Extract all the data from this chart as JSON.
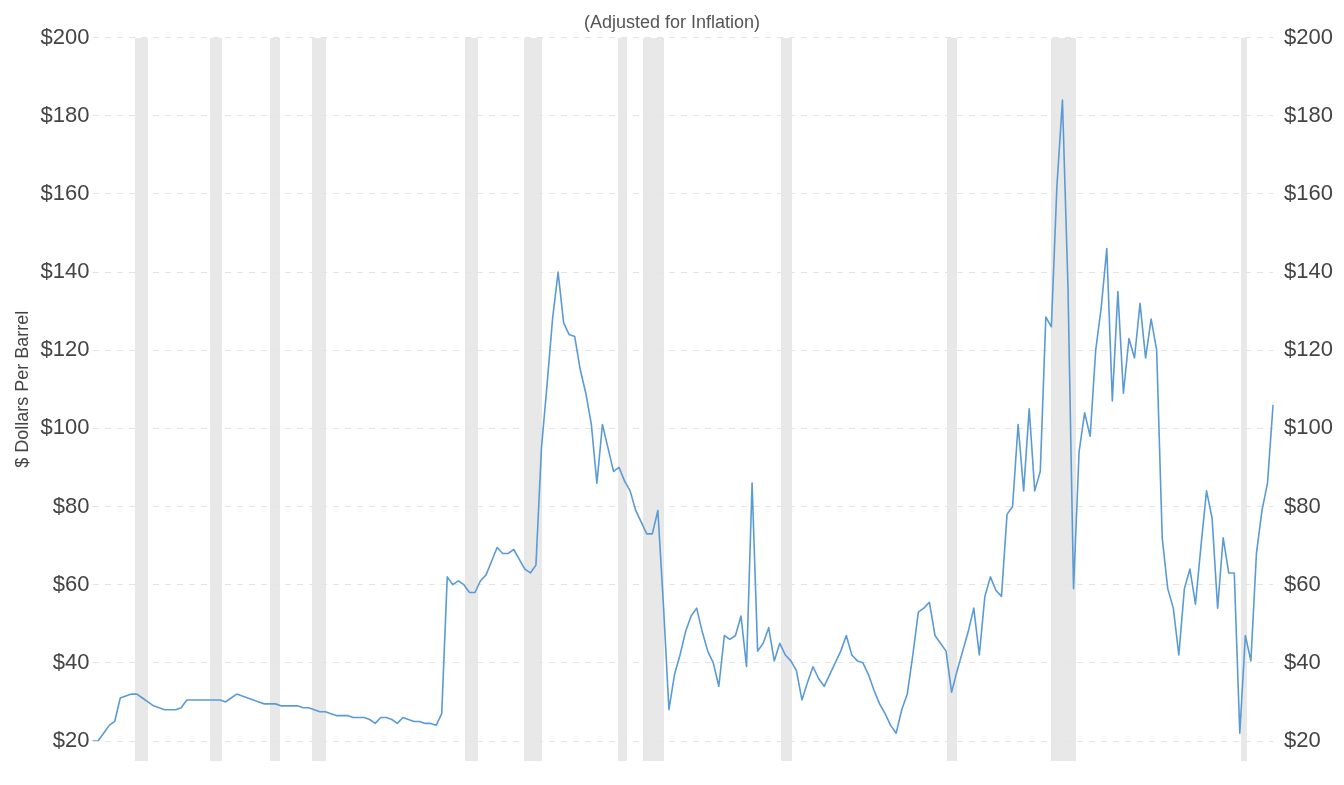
{
  "chart_data": {
    "type": "line",
    "subtitle": "(Adjusted for Inflation)",
    "ylabel": "$ Dollars Per Barrel",
    "categories": [
      null,
      null,
      null,
      null,
      null,
      null,
      null,
      null,
      null,
      null,
      null,
      null,
      null,
      null,
      null,
      null,
      null,
      null,
      null,
      null,
      null,
      null,
      null,
      null,
      null,
      null,
      null,
      null,
      null,
      null,
      null,
      null,
      null,
      null,
      null,
      null,
      null,
      null,
      null,
      null,
      null,
      null,
      null,
      null,
      null,
      null,
      null,
      null,
      null,
      null,
      null,
      null,
      null,
      null,
      null,
      null,
      null,
      null,
      null,
      null,
      null,
      null,
      null,
      null,
      null,
      null,
      null,
      null,
      null,
      null,
      null,
      null,
      null,
      null,
      null,
      null,
      null,
      null,
      null,
      null,
      null,
      null,
      null,
      null,
      null,
      null,
      null,
      null,
      null,
      null,
      null,
      null,
      null,
      null,
      null,
      null,
      null,
      null,
      null,
      null,
      null,
      null,
      null,
      null,
      null,
      null,
      null,
      null,
      null,
      null,
      null,
      null,
      null,
      null,
      null,
      null,
      null,
      null,
      null,
      null,
      null,
      null,
      null,
      null,
      null,
      null,
      null,
      null,
      null,
      null,
      null,
      null,
      null,
      null,
      null,
      null,
      null,
      null,
      null,
      null,
      null,
      null,
      null,
      null,
      null,
      null,
      null,
      null,
      null,
      null,
      null,
      null,
      null,
      null,
      null,
      null,
      null,
      null,
      null,
      null,
      null,
      null,
      null,
      null,
      null,
      null,
      null,
      null,
      null,
      null,
      null,
      null,
      null,
      null,
      null,
      null,
      null,
      null,
      null,
      null,
      null,
      null,
      null,
      null,
      null,
      null,
      null,
      null,
      null,
      null,
      null,
      null,
      null,
      null,
      null,
      null,
      null,
      null,
      null,
      null,
      null,
      null,
      null,
      null,
      null,
      null,
      null,
      null,
      null,
      null,
      null,
      null,
      null,
      null
    ],
    "series": [
      {
        "color": "#5b9bd5",
        "values": [
          20,
          20,
          22,
          24,
          25,
          31,
          31.5,
          32,
          32,
          31,
          30,
          29,
          28.5,
          28,
          28,
          28,
          28.5,
          30.5,
          30.5,
          30.5,
          30.5,
          30.5,
          30.5,
          30.5,
          30,
          31,
          32,
          31.5,
          31,
          30.5,
          30,
          29.5,
          29.5,
          29.5,
          29,
          29,
          29,
          29,
          28.5,
          28.5,
          28,
          27.5,
          27.5,
          27,
          26.5,
          26.5,
          26.5,
          26,
          26,
          26,
          25.5,
          24.5,
          26,
          26,
          25.5,
          24.5,
          26,
          25.5,
          25,
          25,
          24.5,
          24.5,
          24,
          27,
          62,
          60,
          61,
          60,
          58,
          58,
          61,
          62.5,
          66,
          69.5,
          68,
          68,
          69,
          66.5,
          64,
          63,
          65,
          95,
          111,
          128,
          140,
          127,
          124,
          123.5,
          115,
          109,
          101,
          86,
          101,
          95,
          89,
          90,
          86.5,
          84,
          79,
          76,
          73,
          73,
          79,
          55,
          28,
          37,
          42,
          48,
          52,
          54,
          48,
          43,
          40,
          34,
          47,
          46,
          47,
          52,
          39,
          86,
          43,
          45,
          49,
          40.5,
          45,
          42,
          40.5,
          38,
          30.5,
          35,
          39,
          36,
          34,
          37,
          40,
          43,
          47,
          42,
          40.5,
          40,
          37,
          33,
          29.5,
          27,
          24,
          22,
          28,
          32,
          42,
          53,
          54,
          55.5,
          47,
          45,
          43,
          32.5,
          38,
          43,
          48,
          54,
          42,
          57,
          62,
          58.5,
          57,
          78,
          80,
          101,
          84,
          105,
          84,
          89,
          128.5,
          126,
          162,
          184,
          136,
          59,
          94,
          104,
          98,
          120,
          131,
          146,
          107,
          135,
          109,
          123,
          118,
          132,
          118,
          128,
          120,
          72,
          59,
          54,
          42,
          59,
          64,
          55,
          70,
          84,
          77,
          54,
          72,
          63,
          63,
          22,
          47,
          40.5,
          68,
          79,
          86,
          106
        ]
      }
    ],
    "ylim": [
      20,
      200
    ],
    "yticks": [
      {
        "value": 20,
        "label": "$20"
      },
      {
        "value": 40,
        "label": "$40"
      },
      {
        "value": 60,
        "label": "$60"
      },
      {
        "value": 80,
        "label": "$80"
      },
      {
        "value": 100,
        "label": "$100"
      },
      {
        "value": 120,
        "label": "$120"
      },
      {
        "value": 140,
        "label": "$140"
      },
      {
        "value": 160,
        "label": "$160"
      },
      {
        "value": 180,
        "label": "$180"
      },
      {
        "value": 200,
        "label": "$200"
      }
    ],
    "y2lim": [
      20,
      200
    ],
    "y2ticks": [
      {
        "value": 20,
        "label": "$20"
      },
      {
        "value": 40,
        "label": "$40"
      },
      {
        "value": 60,
        "label": "$60"
      },
      {
        "value": 80,
        "label": "$80"
      },
      {
        "value": 100,
        "label": "$100"
      },
      {
        "value": 120,
        "label": "$120"
      },
      {
        "value": 140,
        "label": "$140"
      },
      {
        "value": 160,
        "label": "$160"
      },
      {
        "value": 180,
        "label": "$180"
      },
      {
        "value": 200,
        "label": "$200"
      }
    ],
    "grid": "y",
    "tick_labels": "y",
    "line_style": "solid"
  }
}
